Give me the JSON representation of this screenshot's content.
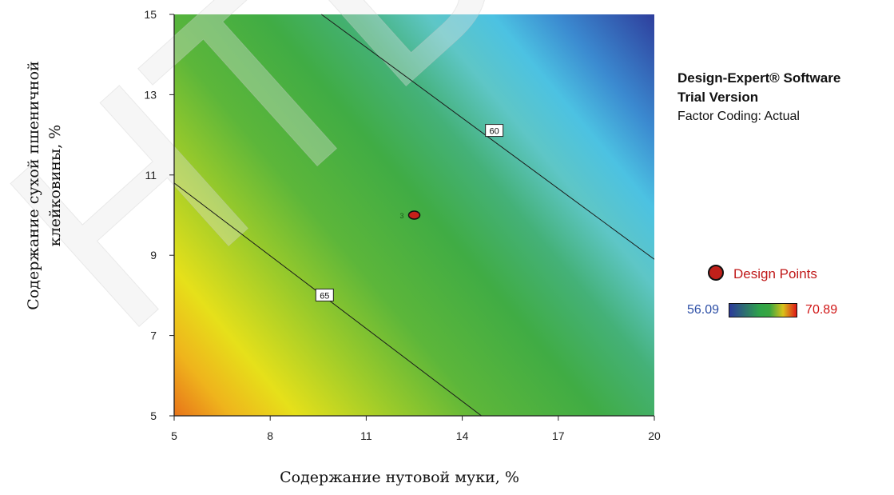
{
  "chart_data": {
    "type": "heatmap",
    "subtype": "contour",
    "xlabel": "Содержание нутовой муки, %",
    "ylabel_lines": [
      "Содержание сухой пшеничной",
      "клейковины, %"
    ],
    "xlim": [
      5,
      20
    ],
    "ylim": [
      5,
      15
    ],
    "xticks": [
      "5",
      "8",
      "11",
      "14",
      "17",
      "20"
    ],
    "yticks": [
      "5",
      "7",
      "9",
      "11",
      "13",
      "15"
    ],
    "color_scale": {
      "min": 56.09,
      "max": 70.89,
      "low_color": "#2c3a9a",
      "mid_color": "#35a545",
      "high_color": "#e06010"
    },
    "contours": [
      {
        "label": "65",
        "value": 65,
        "points": [
          [
            5,
            10.8
          ],
          [
            14.6,
            5
          ]
        ],
        "label_at": [
          9.7,
          8.0
        ]
      },
      {
        "label": "60",
        "value": 60,
        "points": [
          [
            9.6,
            15
          ],
          [
            20,
            8.9
          ]
        ],
        "label_at": [
          15.0,
          12.1
        ]
      }
    ],
    "design_points": [
      {
        "x": 12.5,
        "y": 10,
        "count": "3"
      }
    ],
    "grid": false
  },
  "legend": {
    "line1": "Design-Expert® Software",
    "line2": "Trial Version",
    "line3": "Factor Coding: Actual",
    "design_points_label": "Design Points",
    "scale_min_label": "56.09",
    "scale_max_label": "70.89"
  },
  "watermark": "НТБ С"
}
